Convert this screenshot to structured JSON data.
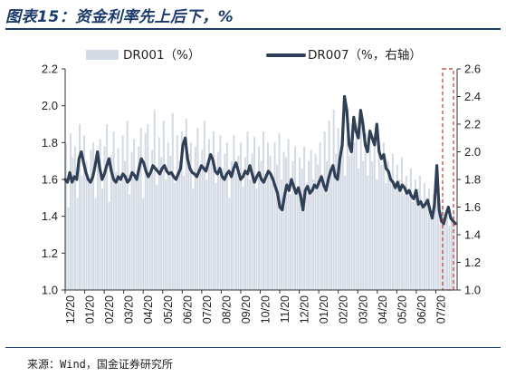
{
  "figure": {
    "title": "图表15：资金利率先上后下，%",
    "source": "来源：Wind，国金证券研究所"
  },
  "chart_data": {
    "type": "bar+line",
    "legend": {
      "placement": "top",
      "items": [
        "DR001（%）",
        "DR007（%，右轴）"
      ]
    },
    "series": [
      {
        "name": "DR001（%）",
        "type": "bar",
        "axis": "left",
        "color": "#d3dae4",
        "values": [
          1.8,
          1.45,
          1.85,
          1.72,
          1.78,
          1.5,
          1.9,
          1.62,
          1.84,
          1.7,
          1.6,
          1.76,
          1.8,
          1.5,
          1.7,
          1.82,
          1.55,
          1.78,
          1.9,
          1.48,
          1.73,
          1.86,
          1.64,
          1.77,
          1.58,
          1.84,
          1.7,
          1.92,
          1.52,
          1.75,
          1.82,
          1.6,
          1.78,
          1.88,
          1.5,
          1.85,
          1.9,
          1.62,
          1.76,
          1.98,
          1.57,
          1.83,
          1.72,
          1.92,
          1.6,
          1.8,
          1.73,
          1.96,
          1.58,
          1.84,
          1.7,
          1.86,
          1.62,
          1.93,
          1.74,
          1.8,
          1.55,
          1.78,
          1.88,
          1.65,
          1.76,
          1.92,
          1.6,
          1.82,
          1.7,
          1.86,
          1.58,
          1.75,
          1.84,
          1.66,
          1.74,
          1.8,
          1.5,
          1.7,
          1.84,
          1.64,
          1.73,
          1.8,
          1.56,
          1.72,
          1.86,
          1.6,
          1.74,
          1.83,
          1.55,
          1.78,
          1.7,
          1.86,
          1.62,
          1.8,
          1.73,
          1.58,
          1.8,
          1.68,
          1.85,
          1.6,
          1.75,
          1.72,
          1.82,
          1.52,
          1.7,
          1.78,
          1.55,
          1.72,
          1.66,
          1.78,
          1.58,
          1.7,
          1.76,
          1.6,
          1.74,
          1.68,
          1.8,
          1.58,
          1.86,
          1.7,
          1.92,
          1.64,
          1.98,
          1.74,
          1.88,
          1.7,
          1.95,
          1.62,
          1.84,
          1.73,
          1.9,
          1.8,
          1.88,
          1.66,
          1.95,
          1.7,
          1.85,
          1.62,
          1.78,
          1.7,
          1.82,
          1.6,
          1.75,
          1.68,
          1.8,
          1.58,
          1.7,
          1.64,
          1.74,
          1.56,
          1.68,
          1.6,
          1.72,
          1.52,
          1.62,
          1.55,
          1.66,
          1.48,
          1.6,
          1.55,
          1.62,
          1.45,
          1.58,
          1.5,
          1.55,
          1.42,
          1.52,
          1.46,
          1.5,
          1.38,
          1.45,
          1.4,
          1.42,
          1.35,
          1.4,
          1.42
        ]
      },
      {
        "name": "DR007（%，右轴）",
        "type": "line",
        "axis": "right",
        "color": "#2f3f56",
        "values": [
          1.8,
          1.78,
          1.85,
          1.78,
          1.82,
          1.8,
          1.95,
          2.0,
          1.92,
          1.85,
          1.8,
          1.78,
          1.82,
          1.9,
          2.0,
          1.88,
          1.8,
          1.84,
          1.9,
          1.95,
          1.86,
          1.8,
          1.78,
          1.82,
          1.8,
          1.84,
          1.82,
          1.78,
          1.8,
          1.85,
          1.83,
          1.8,
          1.88,
          1.95,
          1.92,
          1.86,
          1.82,
          1.85,
          1.9,
          1.88,
          1.86,
          1.84,
          1.88,
          1.9,
          1.86,
          1.84,
          1.85,
          1.82,
          1.8,
          1.84,
          1.88,
          2.05,
          2.1,
          1.95,
          1.88,
          1.85,
          1.84,
          1.82,
          1.86,
          1.9,
          1.88,
          1.86,
          1.92,
          1.98,
          1.94,
          1.86,
          1.84,
          1.88,
          1.82,
          1.8,
          1.84,
          1.86,
          1.82,
          1.88,
          1.92,
          1.86,
          1.8,
          1.82,
          1.86,
          1.84,
          1.9,
          1.84,
          1.78,
          1.82,
          1.85,
          1.8,
          1.78,
          1.82,
          1.86,
          1.84,
          1.8,
          1.75,
          1.7,
          1.6,
          1.58,
          1.68,
          1.76,
          1.72,
          1.8,
          1.75,
          1.7,
          1.74,
          1.68,
          1.58,
          1.72,
          1.75,
          1.7,
          1.72,
          1.76,
          1.74,
          1.78,
          1.82,
          1.76,
          1.72,
          1.8,
          1.86,
          1.9,
          1.82,
          1.8,
          1.95,
          2.05,
          2.4,
          2.3,
          2.05,
          2.0,
          2.25,
          2.15,
          2.1,
          2.3,
          2.2,
          2.05,
          2.0,
          2.15,
          2.1,
          2.05,
          2.2,
          2.0,
          1.95,
          1.98,
          1.88,
          1.86,
          1.8,
          1.78,
          1.74,
          1.78,
          1.72,
          1.76,
          1.74,
          1.7,
          1.72,
          1.68,
          1.66,
          1.72,
          1.62,
          1.64,
          1.6,
          1.62,
          1.65,
          1.58,
          1.52,
          1.62,
          1.9,
          1.58,
          1.5,
          1.48,
          1.55,
          1.6,
          1.52,
          1.5,
          1.48
        ]
      }
    ],
    "x_tick_labels": [
      "12/20",
      "01/20",
      "02/20",
      "03/20",
      "04/20",
      "05/20",
      "06/20",
      "07/20",
      "08/20",
      "09/20",
      "10/20",
      "11/20",
      "12/20",
      "01/20",
      "02/20",
      "03/20",
      "04/20",
      "05/20",
      "06/20",
      "07/20"
    ],
    "y_left": {
      "min": 1.0,
      "max": 2.2,
      "ticks": [
        "1.0",
        "1.2",
        "1.4",
        "1.6",
        "1.8",
        "2.0",
        "2.2"
      ]
    },
    "y_right": {
      "min": 1.0,
      "max": 2.6,
      "ticks": [
        "1.0",
        "1.2",
        "1.4",
        "1.6",
        "1.8",
        "2.0",
        "2.2",
        "2.4",
        "2.6"
      ]
    },
    "highlight": {
      "style": "dashed",
      "color": "#c0392b"
    }
  }
}
